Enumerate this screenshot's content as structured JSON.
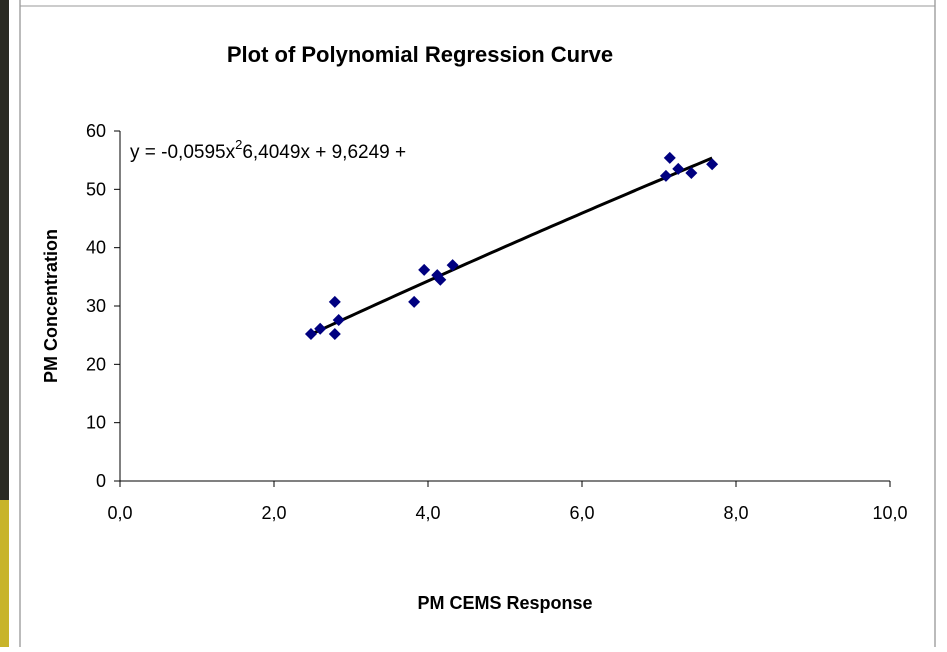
{
  "chart_data": {
    "type": "scatter",
    "title": "Plot of Polynomial Regression Curve",
    "x_label": "PM CEMS Response",
    "y_label": "PM Concentration",
    "series": [
      {
        "name": "PM Concentration",
        "color": "#000080",
        "x": [
          2.48,
          2.6,
          2.79,
          2.79,
          2.84,
          3.82,
          3.95,
          4.12,
          4.16,
          4.32,
          7.09,
          7.14,
          7.25,
          7.42,
          7.69
        ],
        "values": [
          25.2,
          26.1,
          30.7,
          25.2,
          27.6,
          30.7,
          36.2,
          35.3,
          34.5,
          37.0,
          52.3,
          55.4,
          53.5,
          52.8,
          54.3
        ]
      }
    ],
    "trendline": {
      "color": "#000000",
      "coefficients": [
        -0.0595,
        6.4049,
        9.6249
      ],
      "equation": [
        "y = -0,0595x",
        "2",
        "6,4049x + 9,6249 +"
      ]
    },
    "xlim": [
      0,
      10
    ],
    "xticks": [
      {
        "value": 0,
        "label": "0,0"
      },
      {
        "value": 2,
        "label": "2,0"
      },
      {
        "value": 4,
        "label": "4,0"
      },
      {
        "value": 6,
        "label": "6,0"
      },
      {
        "value": 8,
        "label": "8,0"
      },
      {
        "value": 10,
        "label": "10,0"
      }
    ],
    "ylim": [
      0,
      60
    ],
    "yticks": [
      0,
      10,
      20,
      30,
      40,
      50,
      60
    ],
    "grid": false
  }
}
